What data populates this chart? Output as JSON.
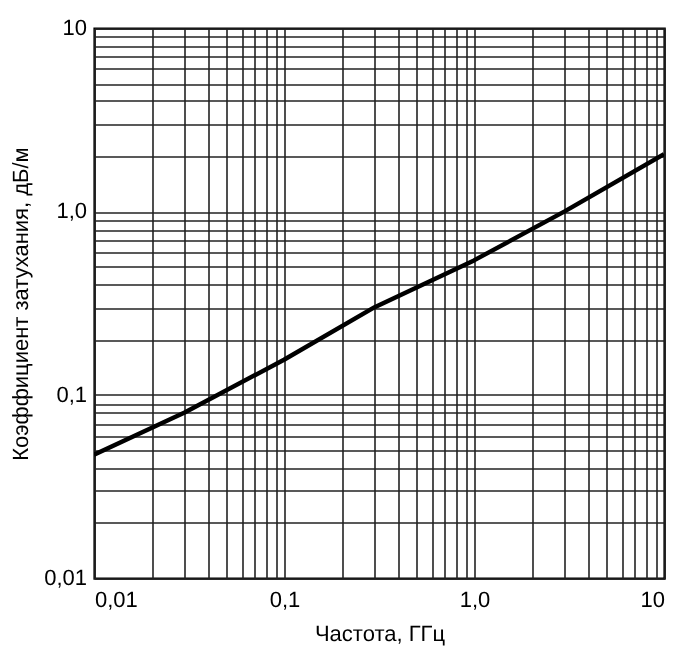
{
  "chart_data": {
    "type": "line",
    "xlabel": "Частота, ГГц",
    "ylabel": "Коэффициент затухания, дБ/м",
    "log": "xy",
    "grid": true,
    "xlim": [
      0.01,
      10
    ],
    "ylim": [
      0.01,
      10
    ],
    "xticks": [
      {
        "value": 0.01,
        "label": "0,01"
      },
      {
        "value": 0.02,
        "label": null
      },
      {
        "value": 0.03,
        "label": null
      },
      {
        "value": 0.04,
        "label": null
      },
      {
        "value": 0.05,
        "label": null
      },
      {
        "value": 0.06,
        "label": null
      },
      {
        "value": 0.07,
        "label": null
      },
      {
        "value": 0.08,
        "label": null
      },
      {
        "value": 0.09,
        "label": null
      },
      {
        "value": 0.1,
        "label": "0,1"
      },
      {
        "value": 0.2,
        "label": null
      },
      {
        "value": 0.3,
        "label": null
      },
      {
        "value": 0.4,
        "label": null
      },
      {
        "value": 0.5,
        "label": null
      },
      {
        "value": 0.6,
        "label": null
      },
      {
        "value": 0.7,
        "label": null
      },
      {
        "value": 0.8,
        "label": null
      },
      {
        "value": 0.9,
        "label": null
      },
      {
        "value": 1,
        "label": "1,0"
      },
      {
        "value": 2,
        "label": null
      },
      {
        "value": 3,
        "label": null
      },
      {
        "value": 4,
        "label": null
      },
      {
        "value": 5,
        "label": null
      },
      {
        "value": 6,
        "label": null
      },
      {
        "value": 7,
        "label": null
      },
      {
        "value": 8,
        "label": null
      },
      {
        "value": 9,
        "label": null
      },
      {
        "value": 10,
        "label": "10"
      }
    ],
    "yticks": [
      {
        "value": 0.01,
        "label": "0,01"
      },
      {
        "value": 0.02,
        "label": null
      },
      {
        "value": 0.03,
        "label": null
      },
      {
        "value": 0.04,
        "label": null
      },
      {
        "value": 0.05,
        "label": null
      },
      {
        "value": 0.06,
        "label": null
      },
      {
        "value": 0.07,
        "label": null
      },
      {
        "value": 0.08,
        "label": null
      },
      {
        "value": 0.09,
        "label": null
      },
      {
        "value": 0.1,
        "label": "0,1"
      },
      {
        "value": 0.2,
        "label": null
      },
      {
        "value": 0.3,
        "label": null
      },
      {
        "value": 0.4,
        "label": null
      },
      {
        "value": 0.5,
        "label": null
      },
      {
        "value": 0.6,
        "label": null
      },
      {
        "value": 0.7,
        "label": null
      },
      {
        "value": 0.8,
        "label": null
      },
      {
        "value": 0.9,
        "label": null
      },
      {
        "value": 1,
        "label": "1,0"
      },
      {
        "value": 2,
        "label": null
      },
      {
        "value": 3,
        "label": null
      },
      {
        "value": 4,
        "label": null
      },
      {
        "value": 5,
        "label": null
      },
      {
        "value": 6,
        "label": null
      },
      {
        "value": 7,
        "label": null
      },
      {
        "value": 8,
        "label": null
      },
      {
        "value": 9,
        "label": null
      },
      {
        "value": 10,
        "label": "10"
      }
    ],
    "x": [
      0.01,
      0.03,
      0.1,
      0.3,
      1,
      3,
      10
    ],
    "series": [
      {
        "color": "#000000",
        "values": [
          0.047,
          0.08,
          0.155,
          0.3,
          0.54,
          1.0,
          2.05
        ]
      }
    ]
  }
}
